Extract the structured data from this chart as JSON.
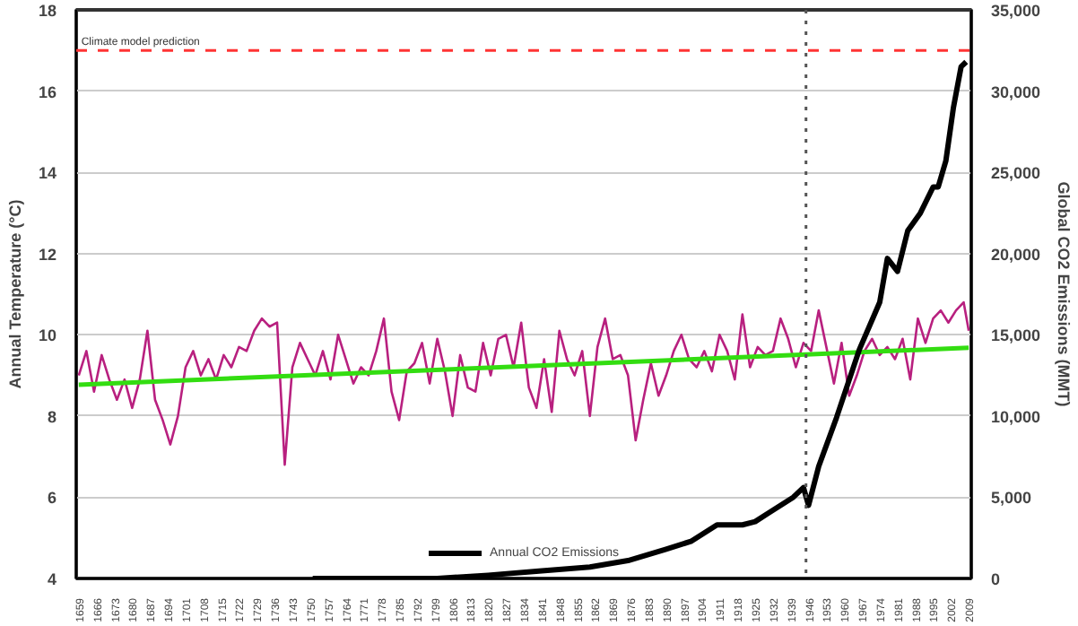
{
  "chart_data": {
    "type": "line",
    "ylabel": "Annual Temperature (°C)",
    "y2label": "Global CO2 Emissions (MMT)",
    "xlim": [
      1658,
      2010
    ],
    "xticks": [
      1659,
      1666,
      1673,
      1680,
      1687,
      1694,
      1701,
      1708,
      1715,
      1722,
      1729,
      1736,
      1743,
      1750,
      1757,
      1764,
      1771,
      1778,
      1785,
      1792,
      1799,
      1806,
      1813,
      1820,
      1827,
      1834,
      1841,
      1848,
      1855,
      1862,
      1869,
      1876,
      1883,
      1890,
      1897,
      1904,
      1911,
      1918,
      1925,
      1932,
      1939,
      1946,
      1953,
      1960,
      1967,
      1974,
      1981,
      1988,
      1995,
      2002,
      2009
    ],
    "ylim": [
      4,
      18
    ],
    "yticks": [
      4,
      6,
      8,
      10,
      12,
      14,
      16,
      18
    ],
    "y2lim": [
      0,
      35000
    ],
    "y2ticks": [
      0,
      {
        "value": 5000,
        "label": "5,000"
      },
      {
        "value": 10000,
        "label": "10,000"
      },
      {
        "value": 15000,
        "label": "15,000"
      },
      {
        "value": 20000,
        "label": "20,000"
      },
      {
        "value": 25000,
        "label": "25,000"
      },
      {
        "value": 30000,
        "label": "30,000"
      },
      {
        "value": 35000,
        "label": "35,000"
      }
    ],
    "grid": "y",
    "legend": "bottom",
    "marker": "none",
    "line_style": "solid",
    "series": [
      {
        "color": "#b8207f",
        "x": [
          1659,
          1662,
          1665,
          1668,
          1671,
          1674,
          1677,
          1680,
          1683,
          1686,
          1689,
          1692,
          1695,
          1698,
          1701,
          1704,
          1707,
          1710,
          1713,
          1716,
          1719,
          1722,
          1725,
          1728,
          1731,
          1734,
          1737,
          1740,
          1743,
          1746,
          1749,
          1752,
          1755,
          1758,
          1761,
          1764,
          1767,
          1770,
          1773,
          1776,
          1779,
          1782,
          1785,
          1788,
          1791,
          1794,
          1797,
          1800,
          1803,
          1806,
          1809,
          1812,
          1815,
          1818,
          1821,
          1824,
          1827,
          1830,
          1833,
          1836,
          1839,
          1842,
          1845,
          1848,
          1851,
          1854,
          1857,
          1860,
          1863,
          1866,
          1869,
          1872,
          1875,
          1878,
          1881,
          1884,
          1887,
          1890,
          1893,
          1896,
          1899,
          1902,
          1905,
          1908,
          1911,
          1914,
          1917,
          1920,
          1923,
          1926,
          1929,
          1932,
          1935,
          1938,
          1941,
          1944,
          1947,
          1950,
          1953,
          1956,
          1959,
          1962,
          1965,
          1968,
          1971,
          1974,
          1977,
          1980,
          1983,
          1986,
          1989,
          1992,
          1995,
          1998,
          2001,
          2004,
          2007,
          2009
        ],
        "values": [
          9.0,
          9.6,
          8.6,
          9.5,
          8.9,
          8.4,
          8.9,
          8.2,
          8.9,
          10.1,
          8.4,
          7.9,
          7.3,
          8.0,
          9.2,
          9.6,
          9.0,
          9.4,
          8.9,
          9.5,
          9.2,
          9.7,
          9.6,
          10.1,
          10.4,
          10.2,
          10.3,
          6.8,
          9.2,
          9.8,
          9.4,
          9.0,
          9.6,
          8.9,
          10.0,
          9.4,
          8.8,
          9.2,
          9.0,
          9.6,
          10.4,
          8.6,
          7.9,
          9.1,
          9.3,
          9.8,
          8.8,
          9.9,
          9.1,
          8.0,
          9.5,
          8.7,
          8.6,
          9.8,
          9.0,
          9.9,
          10.0,
          9.2,
          10.3,
          8.7,
          8.2,
          9.4,
          8.1,
          10.1,
          9.4,
          9.0,
          9.6,
          8.0,
          9.7,
          10.4,
          9.4,
          9.5,
          9.0,
          7.4,
          8.4,
          9.3,
          8.5,
          9.0,
          9.6,
          10.0,
          9.4,
          9.2,
          9.6,
          9.1,
          10.0,
          9.6,
          8.9,
          10.5,
          9.2,
          9.7,
          9.5,
          9.6,
          10.4,
          9.9,
          9.2,
          9.8,
          9.6,
          10.6,
          9.7,
          8.8,
          9.8,
          8.5,
          9.0,
          9.6,
          9.9,
          9.5,
          9.7,
          9.4,
          9.9,
          8.9,
          10.4,
          9.8,
          10.4,
          10.6,
          10.3,
          10.6,
          10.8,
          10.1
        ]
      },
      {
        "color": "#33dd11",
        "x": [
          1659,
          2009
        ],
        "values": [
          8.77,
          9.68
        ]
      },
      {
        "name": "Annual CO2 Emissions",
        "color": "#000000",
        "axis": "y2",
        "x": [
          1751,
          1780,
          1800,
          1820,
          1840,
          1860,
          1875,
          1890,
          1900,
          1910,
          1920,
          1925,
          1930,
          1940,
          1944,
          1946,
          1950,
          1957,
          1966,
          1974,
          1977,
          1981,
          1985,
          1990,
          1995,
          1997,
          2000,
          2003,
          2006,
          2008
        ],
        "values": [
          0,
          0,
          0,
          200,
          450,
          700,
          1100,
          1800,
          2300,
          3300,
          3300,
          3500,
          4000,
          5000,
          5600,
          4500,
          6900,
          9900,
          14100,
          17000,
          19700,
          18900,
          21400,
          22500,
          24100,
          24100,
          25700,
          29000,
          31500,
          31800
        ]
      }
    ],
    "ref_lines": [
      {
        "axis": "y",
        "value": 17,
        "label": "Climate model prediction",
        "color": "#ff3333",
        "line_style": "dashed"
      },
      {
        "axis": "x",
        "value": 1945,
        "color": "#555555",
        "line_style": "dotted"
      }
    ]
  }
}
